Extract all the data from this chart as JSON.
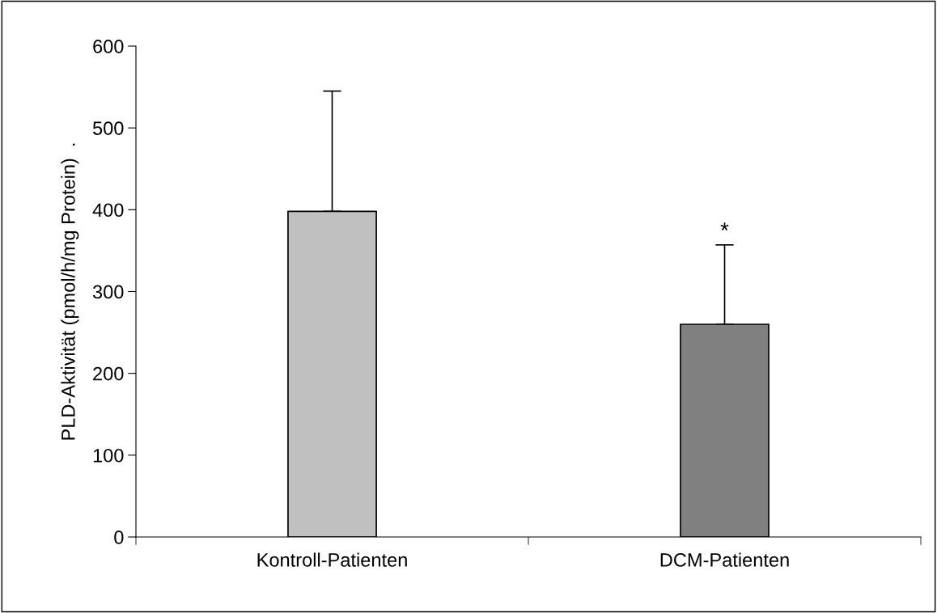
{
  "chart_data": {
    "type": "bar",
    "ylabel": "PLD-Aktivität (pmol/h/mg Protein)  .",
    "categories": [
      "Kontroll-Patienten",
      "DCM-Patienten"
    ],
    "values": [
      398,
      260
    ],
    "colors": [
      "#c0c0c0",
      "#808080"
    ],
    "errors": [
      [
        398,
        545
      ],
      [
        260,
        357
      ]
    ],
    "ylim": [
      0,
      600
    ],
    "yticks": [
      0,
      100,
      200,
      300,
      400,
      500,
      600
    ],
    "grid": false,
    "annotations": [
      {
        "text": "*",
        "x": "DCM-Patienten",
        "y": 357
      }
    ]
  }
}
